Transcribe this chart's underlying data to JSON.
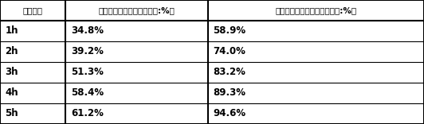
{
  "headers": [
    "反应时间",
    "纯二氧化钛催化剂（降解率:%）",
    "改性二氧化钛催化剂（降解率:%）"
  ],
  "rows": [
    [
      "1h",
      "34.8%",
      "58.9%"
    ],
    [
      "2h",
      "39.2%",
      "74.0%"
    ],
    [
      "3h",
      "51.3%",
      "83.2%"
    ],
    [
      "4h",
      "58.4%",
      "89.3%"
    ],
    [
      "5h",
      "61.2%",
      "94.6%"
    ]
  ],
  "col_boundaries": [
    0.0,
    0.155,
    0.49,
    1.0
  ],
  "header_font_size": 7.5,
  "cell_font_size": 8.5,
  "border_color": "#000000",
  "outer_lw": 1.5,
  "inner_lw": 0.8,
  "header_lw": 1.5,
  "col_sep_lw": 1.5,
  "row_sep_lw": 0.8,
  "figsize": [
    5.32,
    1.56
  ],
  "dpi": 100,
  "bg_color": "#ffffff"
}
